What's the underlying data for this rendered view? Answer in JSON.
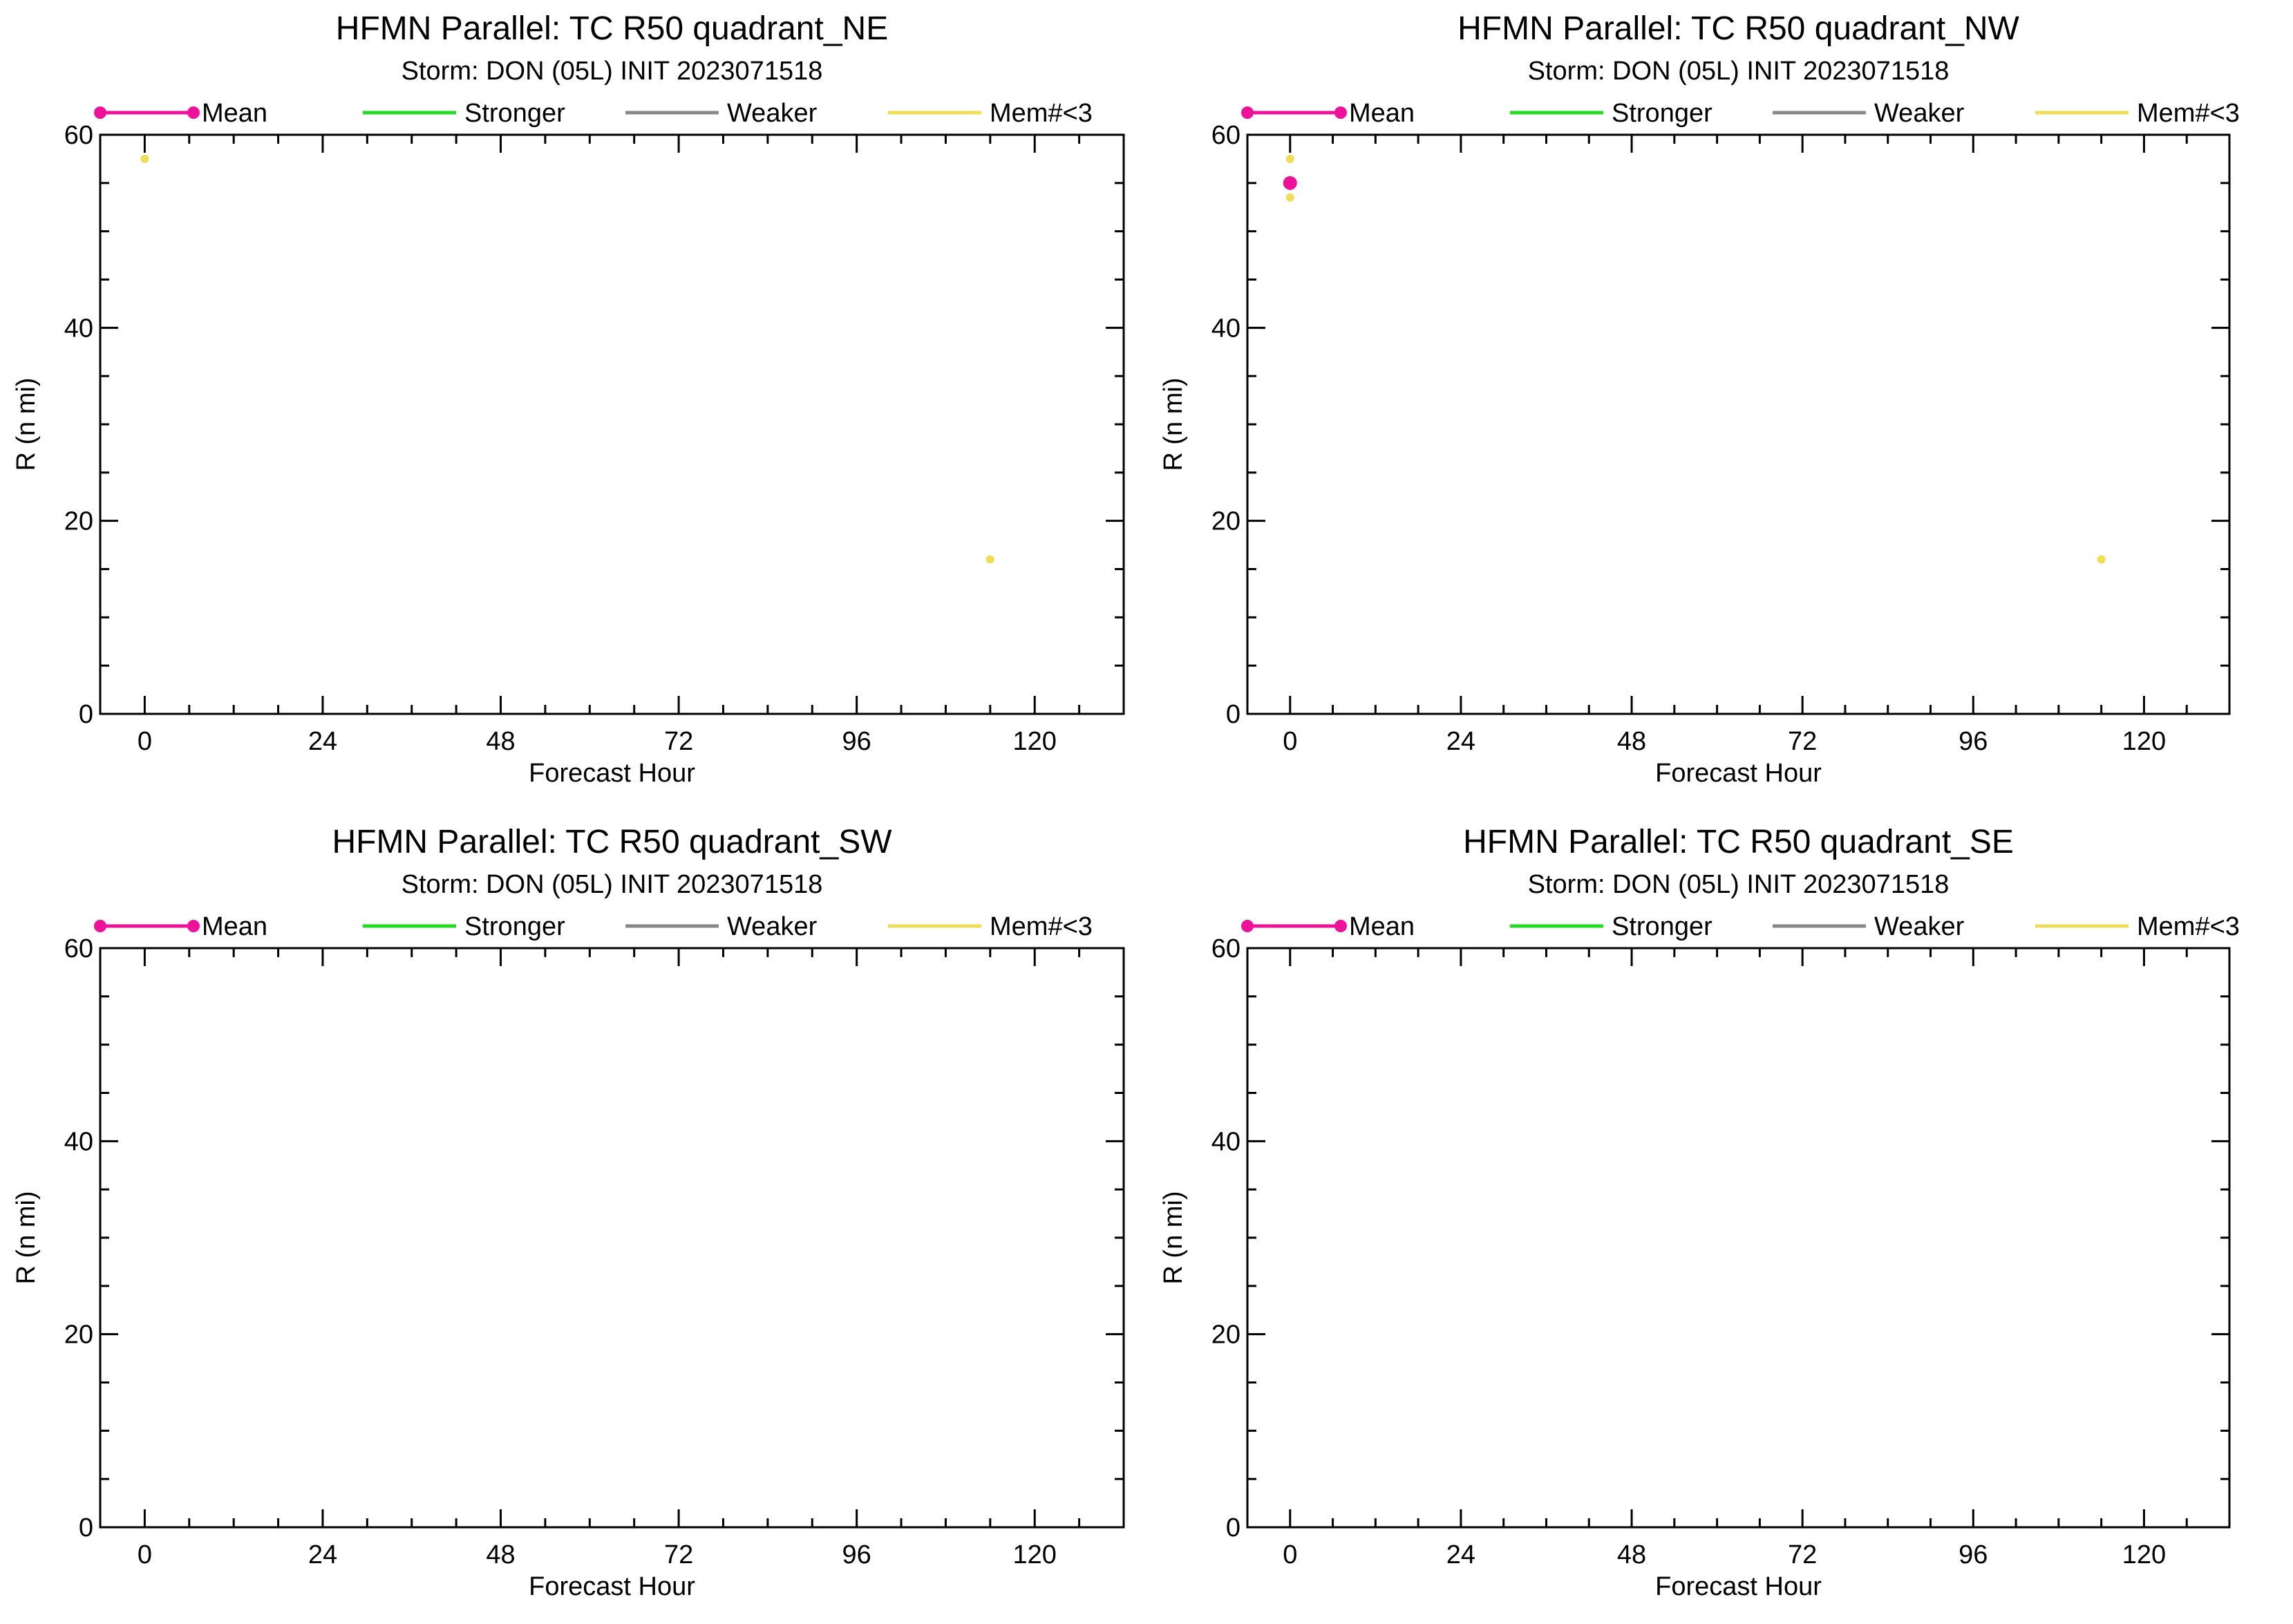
{
  "colors": {
    "mean": "#ee1199",
    "stronger": "#22dd22",
    "weaker": "#888888",
    "members_lt3": "#eedd55"
  },
  "legend": [
    "Mean",
    "Stronger",
    "Weaker",
    "Mem#<3"
  ],
  "chart_data": [
    {
      "type": "scatter",
      "title": "HFMN Parallel: TC  R50 quadrant_NE",
      "subtitle": "Storm: DON (05L) INIT 2023071518",
      "xlabel": "Forecast Hour",
      "ylabel": "R (n mi)",
      "xlim": [
        -6,
        132
      ],
      "ylim": [
        0,
        60
      ],
      "xticks": [
        0,
        24,
        48,
        72,
        96,
        120
      ],
      "yticks": [
        0,
        20,
        40,
        60
      ],
      "legend_placement": "top",
      "series": [
        {
          "name": "Mean",
          "points": []
        },
        {
          "name": "Stronger",
          "points": []
        },
        {
          "name": "Weaker",
          "points": []
        },
        {
          "name": "Mem#<3",
          "points": [
            [
              0,
              57.5
            ],
            [
              114,
              16
            ]
          ]
        }
      ]
    },
    {
      "type": "scatter",
      "title": "HFMN Parallel: TC  R50 quadrant_NW",
      "subtitle": "Storm: DON (05L) INIT 2023071518",
      "xlabel": "Forecast Hour",
      "ylabel": "R (n mi)",
      "xlim": [
        -6,
        132
      ],
      "ylim": [
        0,
        60
      ],
      "xticks": [
        0,
        24,
        48,
        72,
        96,
        120
      ],
      "yticks": [
        0,
        20,
        40,
        60
      ],
      "legend_placement": "top",
      "series": [
        {
          "name": "Mean",
          "points": [
            [
              0,
              55
            ]
          ]
        },
        {
          "name": "Stronger",
          "points": []
        },
        {
          "name": "Weaker",
          "points": []
        },
        {
          "name": "Mem#<3",
          "points": [
            [
              0,
              57.5
            ],
            [
              0,
              53.5
            ],
            [
              114,
              16
            ]
          ]
        }
      ]
    },
    {
      "type": "scatter",
      "title": "HFMN Parallel: TC  R50 quadrant_SW",
      "subtitle": "Storm: DON (05L) INIT 2023071518",
      "xlabel": "Forecast Hour",
      "ylabel": "R (n mi)",
      "xlim": [
        -6,
        132
      ],
      "ylim": [
        0,
        60
      ],
      "xticks": [
        0,
        24,
        48,
        72,
        96,
        120
      ],
      "yticks": [
        0,
        20,
        40,
        60
      ],
      "legend_placement": "top",
      "series": [
        {
          "name": "Mean",
          "points": []
        },
        {
          "name": "Stronger",
          "points": []
        },
        {
          "name": "Weaker",
          "points": []
        },
        {
          "name": "Mem#<3",
          "points": []
        }
      ]
    },
    {
      "type": "scatter",
      "title": "HFMN Parallel: TC  R50 quadrant_SE",
      "subtitle": "Storm: DON (05L) INIT 2023071518",
      "xlabel": "Forecast Hour",
      "ylabel": "R (n mi)",
      "xlim": [
        -6,
        132
      ],
      "ylim": [
        0,
        60
      ],
      "xticks": [
        0,
        24,
        48,
        72,
        96,
        120
      ],
      "yticks": [
        0,
        20,
        40,
        60
      ],
      "legend_placement": "top",
      "series": [
        {
          "name": "Mean",
          "points": []
        },
        {
          "name": "Stronger",
          "points": []
        },
        {
          "name": "Weaker",
          "points": []
        },
        {
          "name": "Mem#<3",
          "points": []
        }
      ]
    }
  ]
}
